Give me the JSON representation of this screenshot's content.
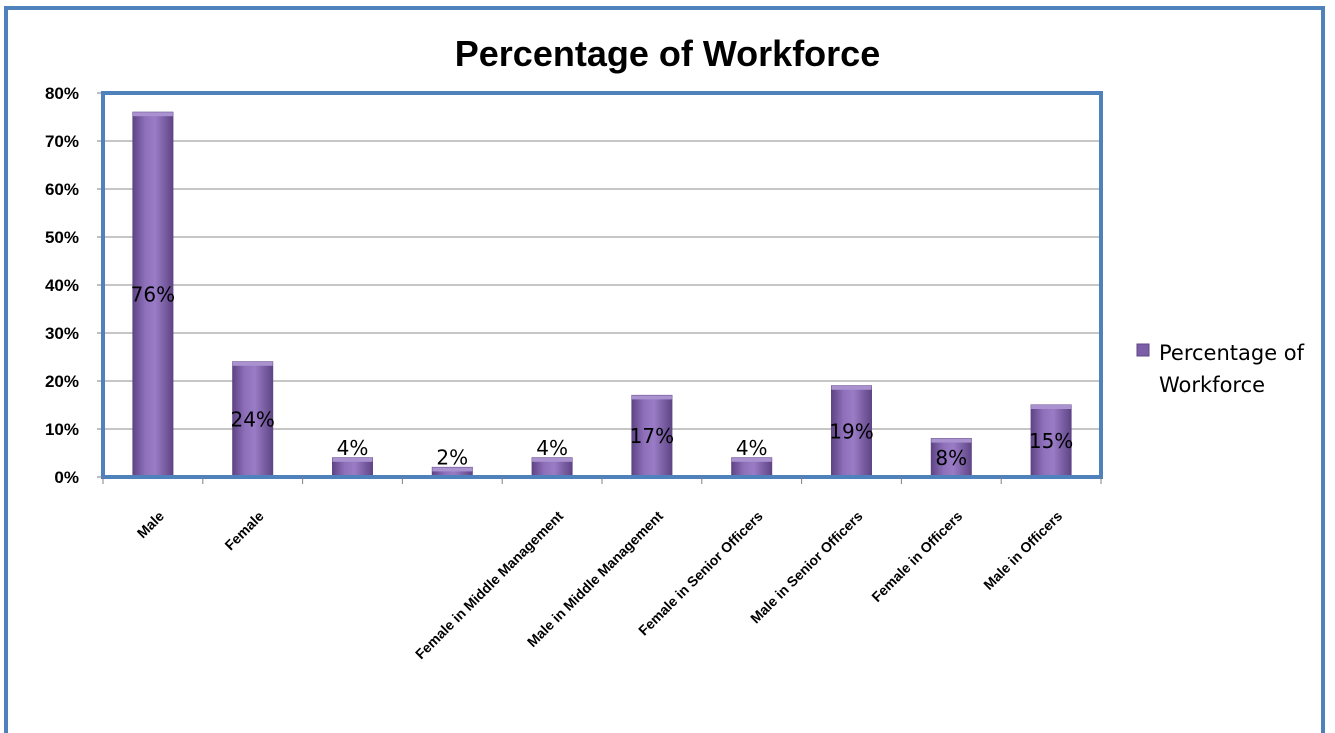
{
  "chart_data": {
    "type": "bar",
    "title": "Percentage of Workforce",
    "categories": [
      "Male",
      "Female",
      "",
      "",
      "Female in Middle Management",
      "Male in Middle Management",
      "Female in Senior Officers",
      "Male in Senior Officers",
      "Female in Officers",
      "Male in Officers"
    ],
    "series": [
      {
        "name": "Percentage of Workforce",
        "values": [
          76,
          24,
          4,
          2,
          4,
          17,
          4,
          19,
          8,
          15
        ],
        "labels": [
          "76%",
          "24%",
          "4%",
          "2%",
          "4%",
          "17%",
          "4%",
          "19%",
          "8%",
          "15%"
        ]
      }
    ],
    "ylim": [
      0,
      80
    ],
    "yticks": [
      0,
      10,
      20,
      30,
      40,
      50,
      60,
      70,
      80
    ],
    "ytick_labels": [
      "0%",
      "10%",
      "20%",
      "30%",
      "40%",
      "50%",
      "60%",
      "70%",
      "80%"
    ],
    "legend": {
      "position": "right",
      "lines": [
        "Percentage of",
        "Workforce"
      ]
    },
    "grid": true,
    "colors": {
      "bar": "#7b5ea7",
      "bar_dark": "#5f4586",
      "plot_border": "#4f81bd",
      "grid": "#8c8c8c"
    }
  }
}
